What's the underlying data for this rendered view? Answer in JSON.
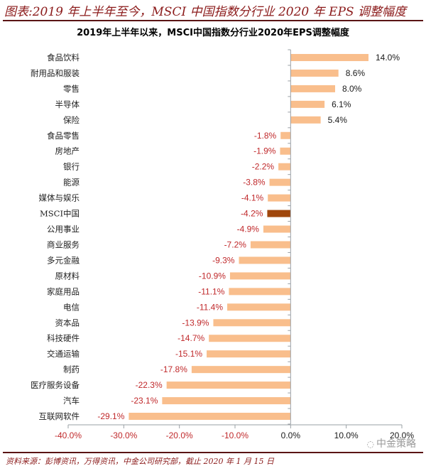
{
  "figure_title": "图表:2019 年上半年至今，MSCI 中国指数分行业 2020 年 EPS 调整幅度",
  "source_note": "资料来源：彭博资讯，万得资讯，中金公司研究部，截止 2020 年 1 月 15 日",
  "watermark": {
    "icon": "wechat-icon",
    "text": "中金策略"
  },
  "colors": {
    "bar": "#f9be8c",
    "highlight_bar": "#a0470c",
    "negative_label": "#c0292b",
    "positive_label": "#1a1a1a",
    "axis": "#9aa0a6"
  },
  "chart_data": {
    "type": "bar",
    "orientation": "horizontal",
    "title": "2019年上半年以来，MSCI中国指数分行业2020年EPS调整幅度",
    "xlabel": "",
    "ylabel": "",
    "xlim": [
      -40,
      20
    ],
    "grid": false,
    "x_ticks": [
      "-40.0%",
      "-30.0%",
      "-20.0%",
      "-10.0%",
      "0.0%",
      "10.0%",
      "20.0%"
    ],
    "x_tick_values": [
      -40,
      -30,
      -20,
      -10,
      0,
      10,
      20
    ],
    "categories": [
      "食品饮料",
      "耐用品和服装",
      "零售",
      "半导体",
      "保险",
      "食品零售",
      "房地产",
      "银行",
      "能源",
      "媒体与娱乐",
      "MSCI中国",
      "公用事业",
      "商业服务",
      "多元金融",
      "原材料",
      "家庭用品",
      "电信",
      "资本品",
      "科技硬件",
      "交通运输",
      "制药",
      "医疗服务设备",
      "汽车",
      "互联网软件"
    ],
    "values": [
      14.0,
      8.6,
      8.0,
      6.1,
      5.4,
      -1.8,
      -1.9,
      -2.2,
      -3.8,
      -4.1,
      -4.2,
      -4.9,
      -7.2,
      -9.3,
      -10.9,
      -11.1,
      -11.4,
      -13.9,
      -14.7,
      -15.1,
      -17.8,
      -22.3,
      -23.1,
      -29.1
    ],
    "data_labels": [
      "14.0%",
      "8.6%",
      "8.0%",
      "6.1%",
      "5.4%",
      "-1.8%",
      "-1.9%",
      "-2.2%",
      "-3.8%",
      "-4.1%",
      "-4.2%",
      "-4.9%",
      "-7.2%",
      "-9.3%",
      "-10.9%",
      "-11.1%",
      "-11.4%",
      "-13.9%",
      "-14.7%",
      "-15.1%",
      "-17.8%",
      "-22.3%",
      "-23.1%",
      "-29.1%"
    ],
    "highlight_category": "MSCI中国"
  }
}
